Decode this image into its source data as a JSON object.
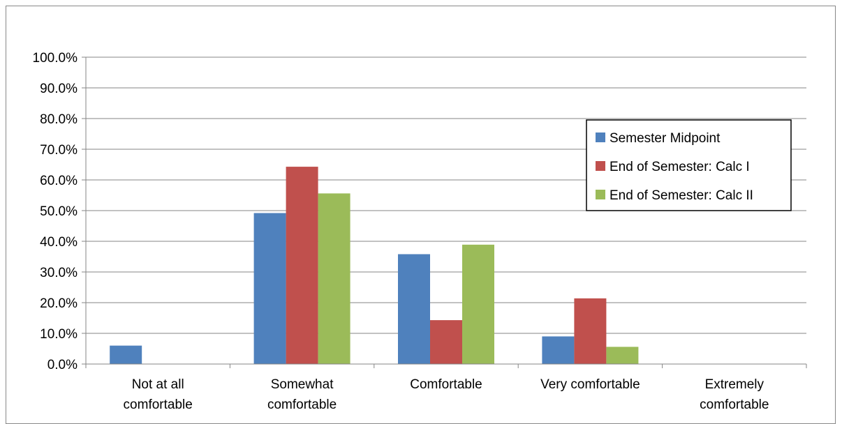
{
  "chart_data": {
    "type": "bar",
    "categories": [
      [
        "Not at all",
        "comfortable"
      ],
      [
        "Somewhat",
        "comfortable"
      ],
      [
        "Comfortable"
      ],
      [
        "Very comfortable"
      ],
      [
        "Extremely",
        "comfortable"
      ]
    ],
    "series": [
      {
        "name": "Semester Midpoint",
        "color": "#4F81BD",
        "values": [
          6.0,
          49.2,
          35.8,
          9.0,
          0.0
        ]
      },
      {
        "name": "End of Semester: Calc I",
        "color": "#C0504D",
        "values": [
          0.0,
          64.3,
          14.3,
          21.4,
          0.0
        ]
      },
      {
        "name": "End of Semester: Calc II",
        "color": "#9BBB59",
        "values": [
          0.0,
          55.6,
          38.9,
          5.6,
          0.0
        ]
      }
    ],
    "yticks": [
      "0.0%",
      "10.0%",
      "20.0%",
      "30.0%",
      "40.0%",
      "50.0%",
      "60.0%",
      "70.0%",
      "80.0%",
      "90.0%",
      "100.0%"
    ],
    "ylim": [
      0,
      100
    ],
    "grid": true,
    "legend_position": "right"
  }
}
